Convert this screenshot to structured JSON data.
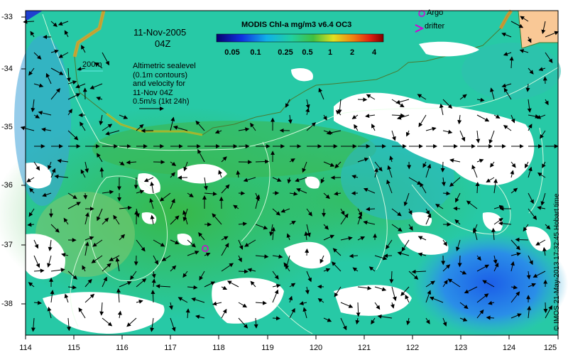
{
  "map": {
    "date_line1": "11-Nov-2005",
    "date_line2": "04Z",
    "colorbar": {
      "title": "MODIS Chl-a mg/m3 v6.4 OC3",
      "labels": [
        "0.05",
        "0.1",
        "0.25",
        "0.5",
        "1",
        "2",
        "4"
      ]
    },
    "annotation_lines": [
      "Altimetric sealevel",
      "(0.1m contours)",
      "and velocity for",
      "11-Nov 04Z",
      "0.5m/s (1kt 24h)"
    ],
    "isobath_label": "200m",
    "legend": {
      "argo": "Argo",
      "drifter": "drifter"
    },
    "credit": "© IMOS 21-May-2013 17:32:45 Hobart time",
    "lat_ticks": [
      "-33",
      "-34",
      "-35",
      "-36",
      "-37",
      "-38"
    ],
    "lon_ticks": [
      "114",
      "115",
      "116",
      "117",
      "118",
      "119",
      "120",
      "121",
      "122",
      "123",
      "124",
      "125"
    ],
    "colors": {
      "land": "#f9c896",
      "cloud": "#ffffff",
      "argo": "#d400d4",
      "contour": "#e8ffe8"
    }
  }
}
